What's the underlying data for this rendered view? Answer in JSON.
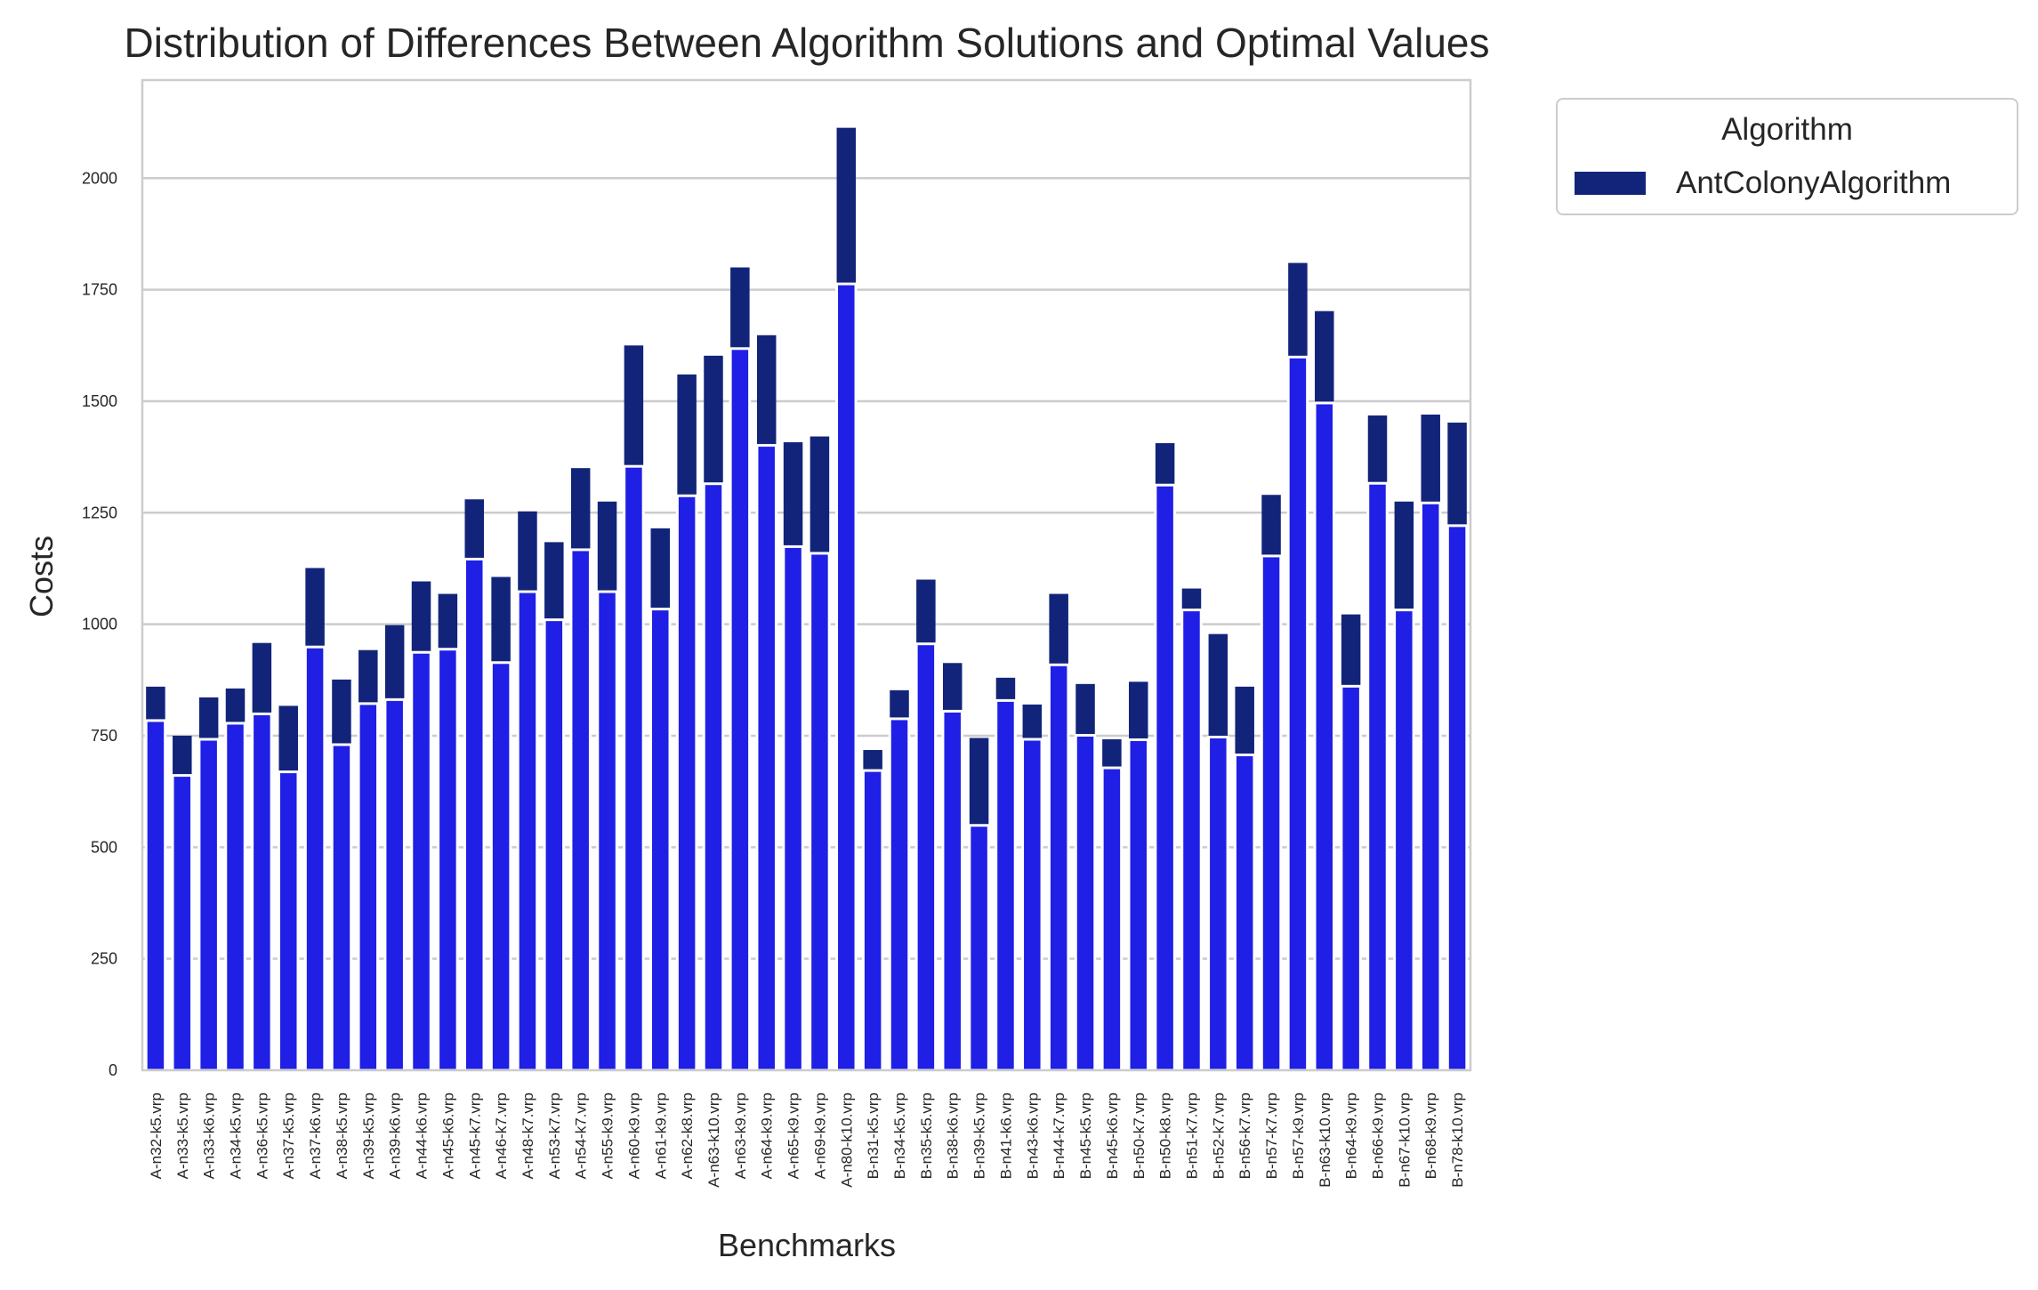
{
  "chart_data": {
    "type": "bar",
    "title": "Distribution of Differences Between Algorithm Solutions and Optimal Values",
    "xlabel": "Benchmarks",
    "ylabel": "Costs",
    "ylim": [
      0,
      2220
    ],
    "yticks": [
      0,
      250,
      500,
      750,
      1000,
      1250,
      1500,
      1750,
      2000
    ],
    "grid": "horizontal",
    "legend": {
      "title": "Algorithm",
      "placement": "outside top-right",
      "entries": [
        {
          "name": "AntColonyAlgorithm",
          "color": "#12247a"
        }
      ]
    },
    "colors": {
      "solution_bar": "#12247a",
      "optimal_bar": "#1f1fe6",
      "grid": "#cccccc",
      "frame": "#cccccc",
      "separator": "#ffffff"
    },
    "categories": [
      "A-n32-k5.vrp",
      "A-n33-k5.vrp",
      "A-n33-k6.vrp",
      "A-n34-k5.vrp",
      "A-n36-k5.vrp",
      "A-n37-k5.vrp",
      "A-n37-k6.vrp",
      "A-n38-k5.vrp",
      "A-n39-k5.vrp",
      "A-n39-k6.vrp",
      "A-n44-k6.vrp",
      "A-n45-k6.vrp",
      "A-n45-k7.vrp",
      "A-n46-k7.vrp",
      "A-n48-k7.vrp",
      "A-n53-k7.vrp",
      "A-n54-k7.vrp",
      "A-n55-k9.vrp",
      "A-n60-k9.vrp",
      "A-n61-k9.vrp",
      "A-n62-k8.vrp",
      "A-n63-k10.vrp",
      "A-n63-k9.vrp",
      "A-n64-k9.vrp",
      "A-n65-k9.vrp",
      "A-n69-k9.vrp",
      "A-n80-k10.vrp",
      "B-n31-k5.vrp",
      "B-n34-k5.vrp",
      "B-n35-k5.vrp",
      "B-n38-k6.vrp",
      "B-n39-k5.vrp",
      "B-n41-k6.vrp",
      "B-n43-k6.vrp",
      "B-n44-k7.vrp",
      "B-n45-k5.vrp",
      "B-n45-k6.vrp",
      "B-n50-k7.vrp",
      "B-n50-k8.vrp",
      "B-n51-k7.vrp",
      "B-n52-k7.vrp",
      "B-n56-k7.vrp",
      "B-n57-k7.vrp",
      "B-n57-k9.vrp",
      "B-n63-k10.vrp",
      "B-n64-k9.vrp",
      "B-n66-k9.vrp",
      "B-n67-k10.vrp",
      "B-n68-k9.vrp",
      "B-n78-k10.vrp"
    ],
    "series": [
      {
        "name": "AntColonyAlgorithm",
        "values": [
          860,
          750,
          836,
          856,
          958,
          817,
          1126,
          876,
          942,
          998,
          1096,
          1068,
          1280,
          1106,
          1253,
          1184,
          1350,
          1275,
          1625,
          1215,
          1560,
          1602,
          1800,
          1648,
          1408,
          1421,
          2113,
          718,
          852,
          1100,
          913,
          745,
          880,
          820,
          1068,
          866,
          742,
          871,
          1406,
          1080,
          978,
          860,
          1290,
          1810,
          1702,
          1022,
          1468,
          1275,
          1470,
          1452
        ]
      },
      {
        "values": [
          784,
          661,
          742,
          778,
          799,
          669,
          949,
          730,
          822,
          831,
          937,
          944,
          1146,
          914,
          1073,
          1010,
          1167,
          1073,
          1354,
          1034,
          1288,
          1315,
          1618,
          1401,
          1174,
          1159,
          1763,
          672,
          788,
          956,
          805,
          549,
          829,
          742,
          909,
          751,
          678,
          741,
          1312,
          1032,
          747,
          707,
          1153,
          1599,
          1496,
          861,
          1316,
          1032,
          1272,
          1221
        ]
      }
    ]
  }
}
